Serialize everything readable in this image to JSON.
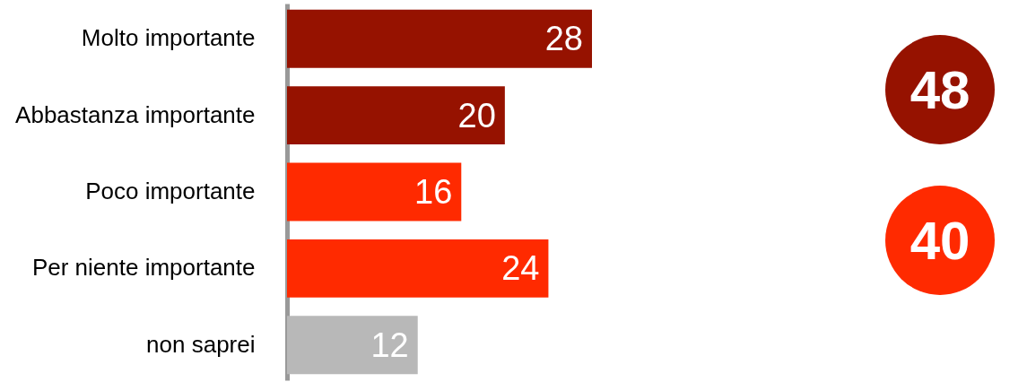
{
  "chart_data": {
    "type": "bar",
    "orientation": "horizontal",
    "categories": [
      "Molto importante",
      "Abbastanza importante",
      "Poco importante",
      "Per niente importante",
      "non saprei"
    ],
    "values": [
      28,
      20,
      16,
      24,
      12
    ],
    "colors": [
      "#961200",
      "#961200",
      "#ff2a00",
      "#ff2a00",
      "#b8b8b8"
    ],
    "data_labels": true,
    "annotations": [
      "48",
      "40"
    ]
  }
}
